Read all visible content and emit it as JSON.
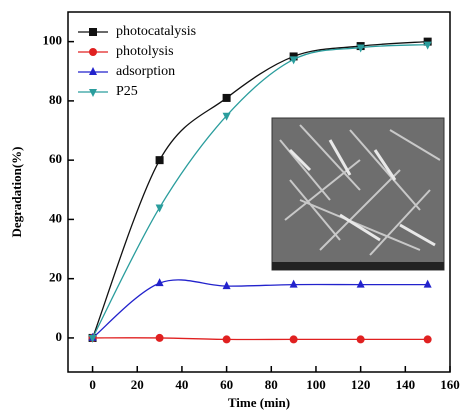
{
  "chart_data": {
    "type": "line",
    "x_label": "Time (min)",
    "y_label": "Degradation(%)",
    "x": [
      0,
      30,
      60,
      90,
      120,
      150
    ],
    "series": [
      {
        "name": "photocatalysis",
        "color": "#111111",
        "marker": "square",
        "values": [
          0,
          60,
          81,
          95,
          98.5,
          100
        ]
      },
      {
        "name": "photolysis",
        "color": "#e02020",
        "marker": "circle",
        "values": [
          0,
          0,
          -0.5,
          -0.5,
          -0.5,
          -0.5
        ]
      },
      {
        "name": "adsorption",
        "color": "#2222cc",
        "marker": "triangle-up",
        "values": [
          0,
          18.5,
          17.5,
          18,
          18,
          18
        ]
      },
      {
        "name": "P25",
        "color": "#2a9d9d",
        "marker": "triangle-down",
        "values": [
          0,
          44,
          75,
          94,
          98,
          99
        ]
      }
    ],
    "xlim": [
      -11,
      160
    ],
    "xticks": [
      0,
      20,
      40,
      60,
      80,
      100,
      120,
      140,
      160
    ],
    "ylim": [
      -11.5,
      110
    ],
    "yticks": [
      0,
      20,
      40,
      60,
      80,
      100
    ],
    "legend": "upper-left",
    "grid": false
  }
}
